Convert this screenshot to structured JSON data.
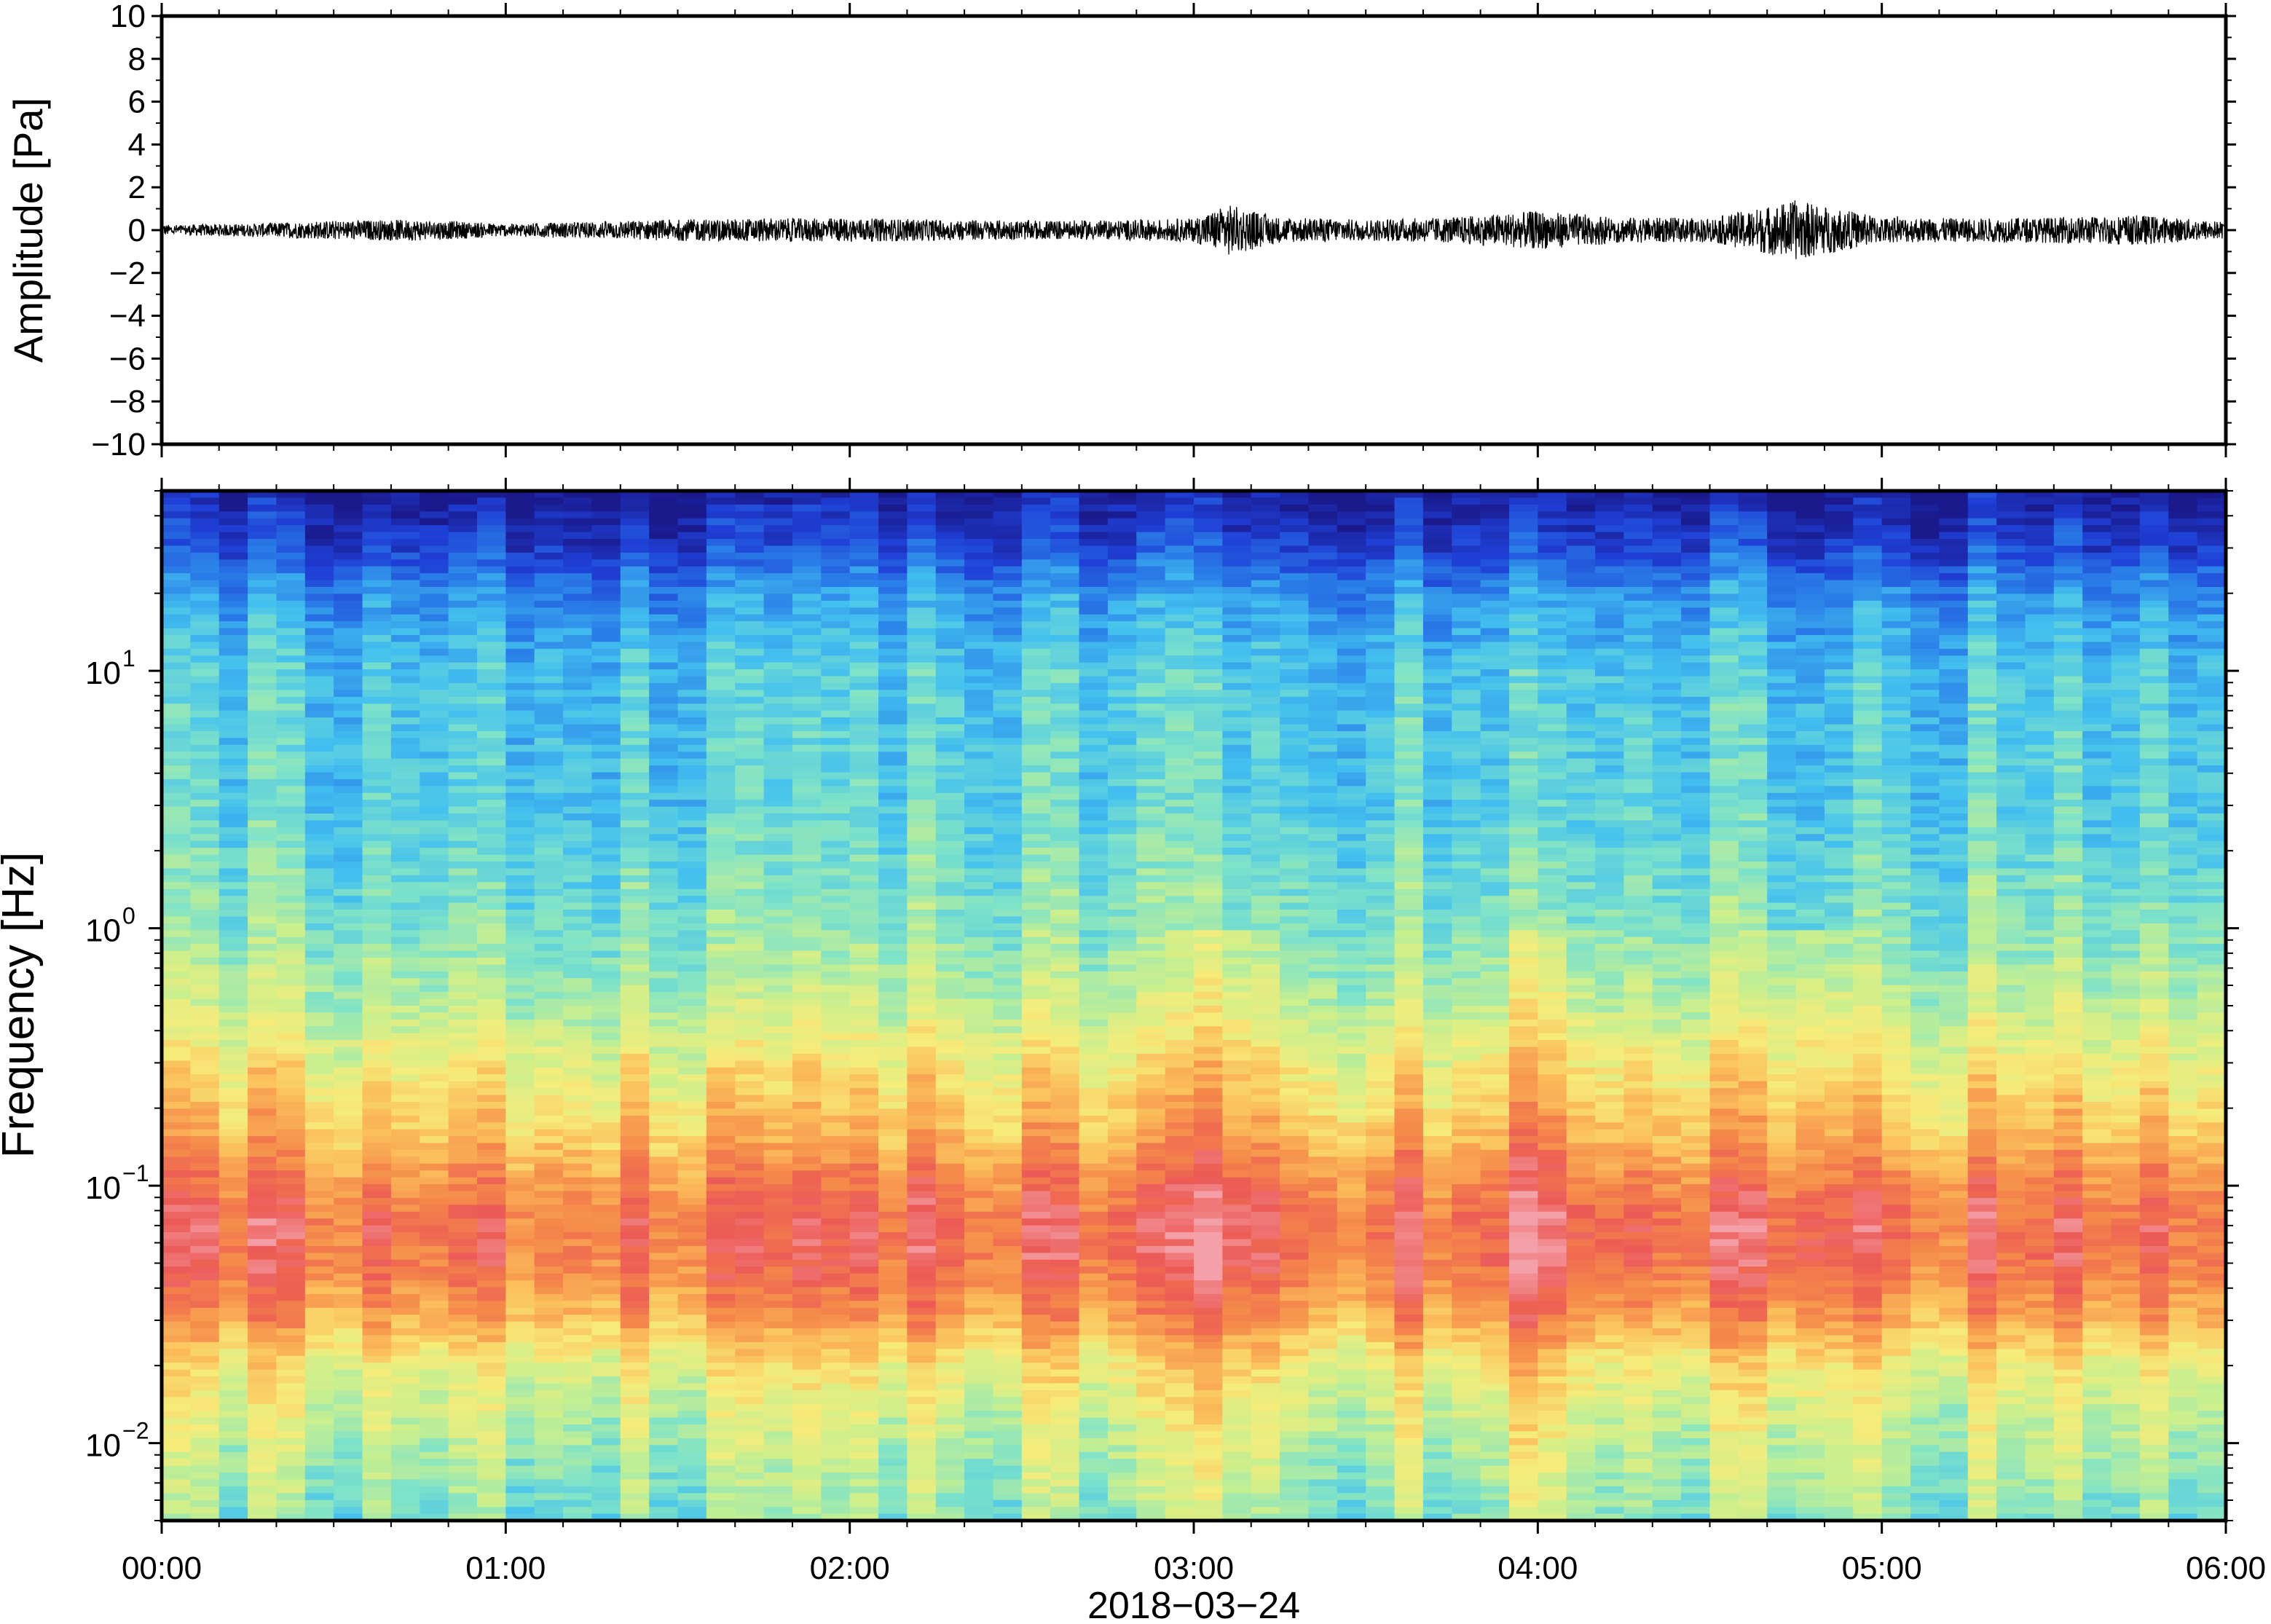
{
  "chart_data": [
    {
      "type": "line",
      "ylabel": "Amplitude [Pa]",
      "ylim": [
        -10,
        10
      ],
      "y_ticks": [
        "10",
        "8",
        "6",
        "4",
        "2",
        "0",
        "−2",
        "−4",
        "−6",
        "−8",
        "−10"
      ],
      "y_tick_values": [
        10,
        8,
        6,
        4,
        2,
        0,
        -2,
        -4,
        -6,
        -8,
        -10
      ],
      "xlim_hours": [
        0,
        6
      ],
      "series": [
        {
          "color": "#000000",
          "envelope_hours": [
            0.0,
            0.25,
            0.5,
            0.75,
            1.0,
            1.25,
            1.5,
            1.75,
            2.0,
            2.25,
            2.5,
            2.75,
            3.0,
            3.1,
            3.25,
            3.5,
            3.75,
            4.0,
            4.25,
            4.5,
            4.75,
            5.0,
            5.25,
            5.5,
            5.75,
            6.0
          ],
          "envelope_amplitude_pa": [
            0.25,
            0.3,
            0.45,
            0.5,
            0.3,
            0.4,
            0.5,
            0.55,
            0.55,
            0.5,
            0.45,
            0.45,
            0.55,
            1.2,
            0.6,
            0.5,
            0.6,
            0.9,
            0.6,
            0.55,
            1.4,
            0.6,
            0.55,
            0.6,
            0.7,
            0.4
          ]
        }
      ]
    },
    {
      "type": "heatmap",
      "ylabel": "Frequency [Hz]",
      "xlabel": "2018−03−24",
      "y_scale": "log",
      "ylim_hz": [
        0.005,
        50
      ],
      "y_ticks": [
        {
          "base": "10",
          "exp": "1",
          "value": 10
        },
        {
          "base": "10",
          "exp": "0",
          "value": 1
        },
        {
          "base": "10",
          "exp": "−1",
          "value": 0.1
        },
        {
          "base": "10",
          "exp": "−2",
          "value": 0.01
        }
      ],
      "x_ticks": [
        "00:00",
        "01:00",
        "02:00",
        "03:00",
        "04:00",
        "05:00",
        "06:00"
      ],
      "x_tick_hours": [
        0,
        1,
        2,
        3,
        4,
        5,
        6
      ],
      "colormap": [
        "#1a1a8c",
        "#1f3fd6",
        "#2a7fe8",
        "#43c0ef",
        "#7fe3c8",
        "#c9ef8e",
        "#f6ec7a",
        "#fbbd5a",
        "#f5894a",
        "#ec5a55",
        "#f4a0a8"
      ],
      "spectrum_profile": {
        "frequency_hz": [
          50,
          30,
          20,
          10,
          3,
          1,
          0.5,
          0.3,
          0.15,
          0.1,
          0.07,
          0.05,
          0.03,
          0.02,
          0.012,
          0.005
        ],
        "level": [
          0.02,
          0.12,
          0.24,
          0.33,
          0.35,
          0.42,
          0.5,
          0.6,
          0.72,
          0.82,
          0.88,
          0.86,
          0.75,
          0.6,
          0.52,
          0.42
        ]
      },
      "energetic_periods_hours": [
        3.1,
        4.0,
        4.8
      ]
    }
  ]
}
